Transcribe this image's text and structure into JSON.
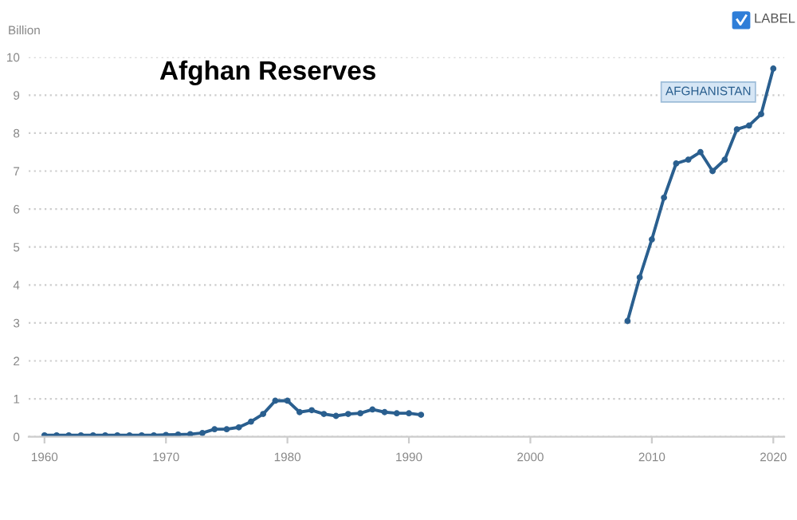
{
  "chart_data": {
    "type": "line",
    "title": "Afghan Reserves",
    "ylabel": "Billion",
    "x": [
      1960,
      1961,
      1962,
      1963,
      1964,
      1965,
      1966,
      1967,
      1968,
      1969,
      1970,
      1971,
      1972,
      1973,
      1974,
      1975,
      1976,
      1977,
      1978,
      1979,
      1980,
      1981,
      1982,
      1983,
      1984,
      1985,
      1986,
      1987,
      1988,
      1989,
      1990,
      1991,
      1992,
      1993,
      1994,
      1995,
      1996,
      1997,
      1998,
      1999,
      2000,
      2001,
      2002,
      2003,
      2004,
      2005,
      2006,
      2007,
      2008,
      2009,
      2010,
      2011,
      2012,
      2013,
      2014,
      2015,
      2016,
      2017,
      2018,
      2019,
      2020
    ],
    "series": [
      {
        "name": "AFGHANISTAN",
        "color": "#2a5f8f",
        "values": [
          0.04,
          0.04,
          0.04,
          0.04,
          0.04,
          0.04,
          0.04,
          0.04,
          0.04,
          0.04,
          0.05,
          0.06,
          0.07,
          0.1,
          0.2,
          0.2,
          0.25,
          0.4,
          0.6,
          0.95,
          0.95,
          0.65,
          0.7,
          0.6,
          0.55,
          0.6,
          0.62,
          0.72,
          0.65,
          0.62,
          0.62,
          0.58,
          null,
          null,
          null,
          null,
          null,
          null,
          null,
          null,
          null,
          null,
          null,
          null,
          null,
          null,
          null,
          null,
          3.05,
          4.2,
          5.2,
          6.3,
          7.2,
          7.3,
          7.5,
          7.0,
          7.3,
          8.1,
          8.2,
          8.5,
          9.7
        ]
      }
    ],
    "xlim": [
      1958.7,
      2020.9
    ],
    "ylim": [
      0,
      10
    ],
    "xticks": [
      1960,
      1970,
      1980,
      1990,
      2000,
      2010,
      2020
    ],
    "yticks": [
      0,
      1,
      2,
      3,
      4,
      5,
      6,
      7,
      8,
      9,
      10
    ],
    "grid": "y",
    "marker": "circle",
    "line_style": "solid",
    "legend": false,
    "annotations": [
      "LABEL"
    ]
  }
}
